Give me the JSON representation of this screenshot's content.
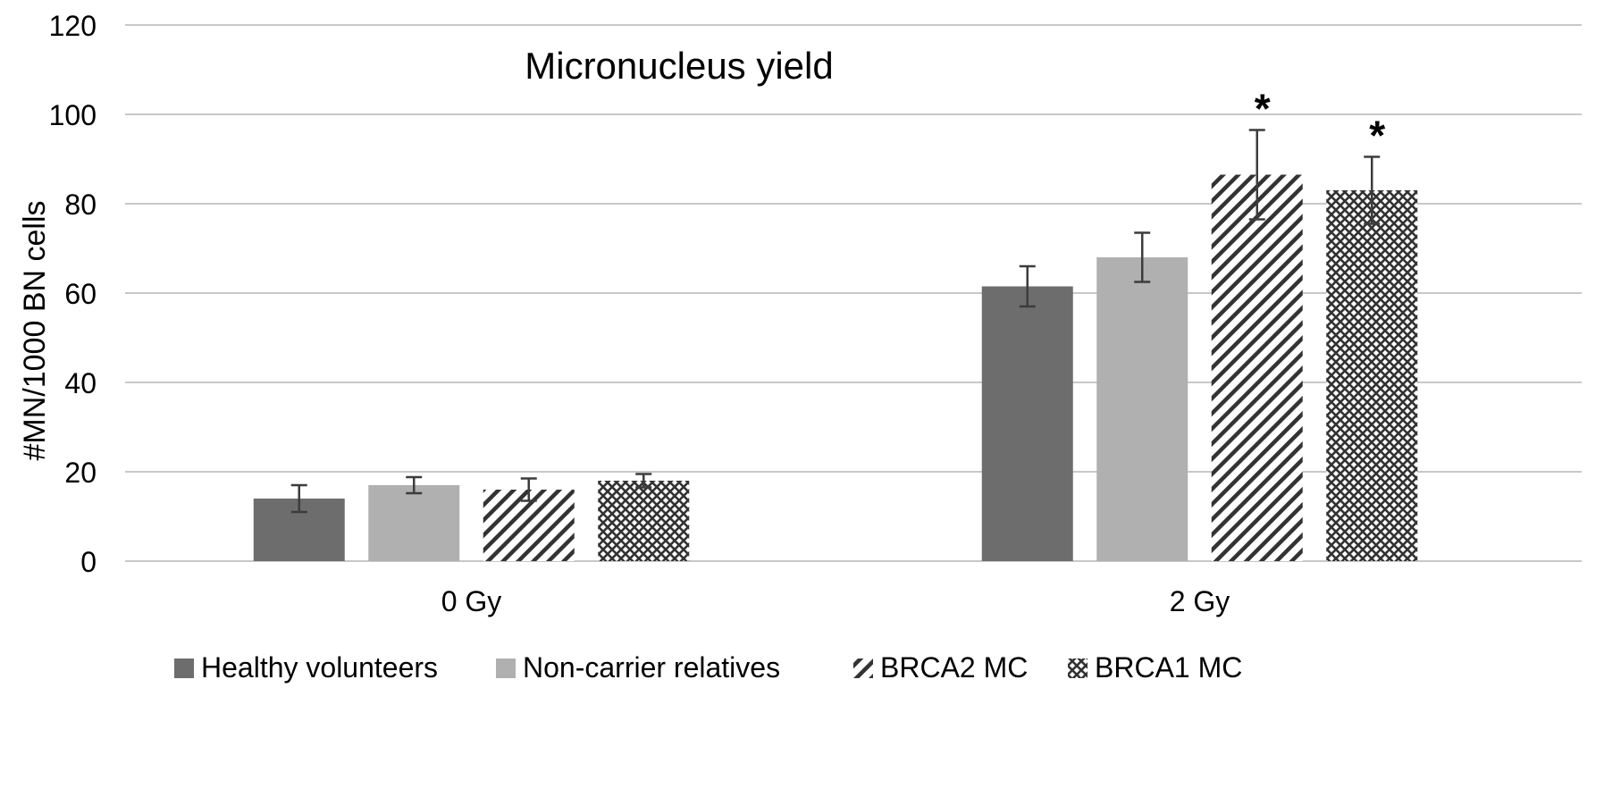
{
  "chart_data": {
    "type": "bar",
    "title": "Micronucleus yield",
    "xlabel": "",
    "ylabel": "#MN/1000 BN cells",
    "ylim": [
      0,
      120
    ],
    "yticks": [
      0,
      20,
      40,
      60,
      80,
      100,
      120
    ],
    "grid": true,
    "legend_position": "bottom",
    "categories": [
      "0 Gy",
      "2 Gy"
    ],
    "series": [
      {
        "name": "Healthy volunteers",
        "values": [
          14,
          61.5
        ],
        "errors": [
          3,
          4.5
        ],
        "significant": [
          false,
          false
        ],
        "color": "#6d6d6d",
        "pattern": "solid"
      },
      {
        "name": "Non-carrier relatives",
        "values": [
          17,
          68
        ],
        "errors": [
          1.8,
          5.5
        ],
        "significant": [
          false,
          false
        ],
        "color": "#b0b0b0",
        "pattern": "solid"
      },
      {
        "name": "BRCA2 MC",
        "values": [
          16,
          86.5
        ],
        "errors": [
          2.5,
          10
        ],
        "significant": [
          false,
          true
        ],
        "color": "#333333",
        "pattern": "diagonal"
      },
      {
        "name": "BRCA1 MC",
        "values": [
          18,
          83
        ],
        "errors": [
          1.5,
          7.5
        ],
        "significant": [
          false,
          true
        ],
        "color": "#333333",
        "pattern": "crosshatch"
      }
    ],
    "significance_marker": "*"
  }
}
